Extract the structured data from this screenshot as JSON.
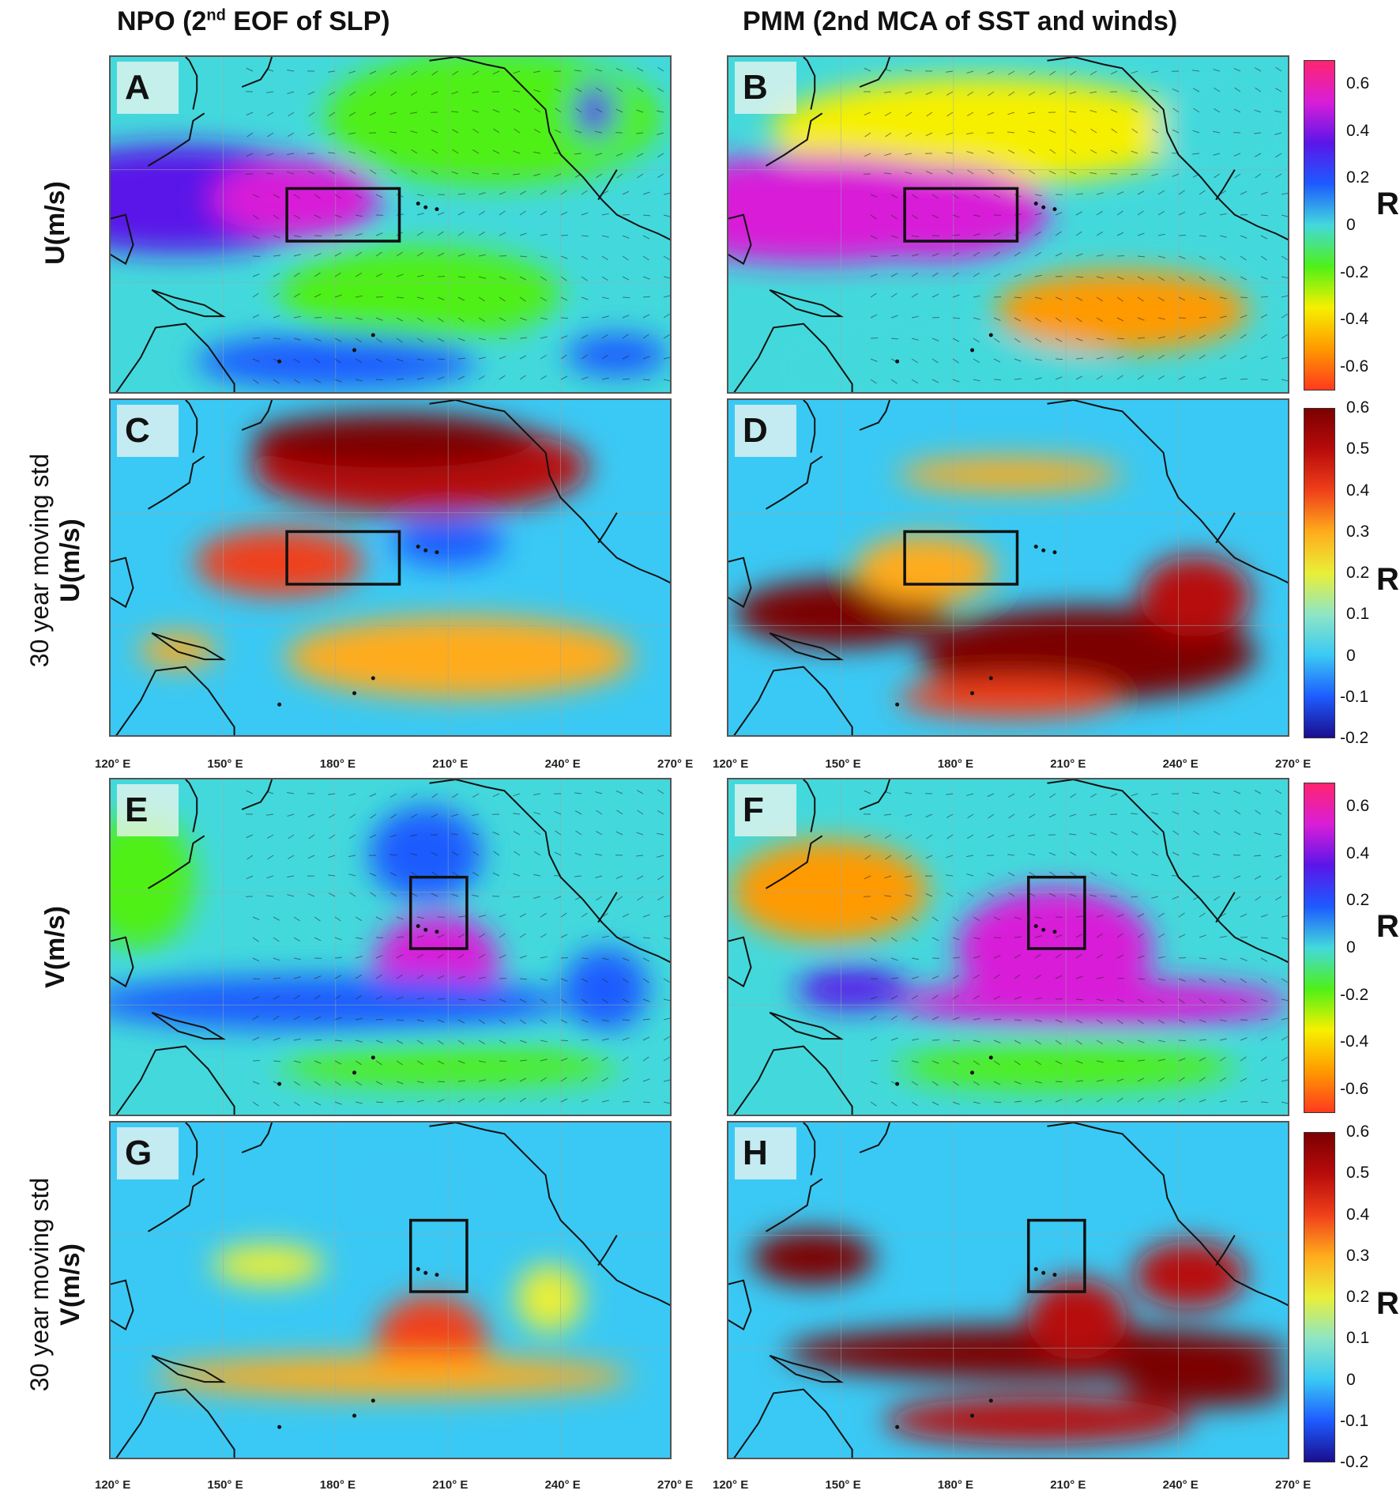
{
  "titles": {
    "left": {
      "prefix": "NPO (2",
      "sup": "nd",
      "suffix": " EOF of SLP)"
    },
    "right": {
      "prefix": "PMM (2nd MCA of SST and winds)"
    }
  },
  "row_labels": [
    {
      "sub": "",
      "main": "U(m/s)"
    },
    {
      "sub": "30 year moving std",
      "main": "U(m/s)"
    },
    {
      "sub": "",
      "main": "V(m/s)"
    },
    {
      "sub": "30 year moving std",
      "main": "V(m/s)"
    }
  ],
  "panels": [
    {
      "id": "A",
      "label": "A",
      "kind": "corr",
      "box": {
        "lon": [
          167,
          197
        ],
        "lat": [
          11,
          25
        ]
      }
    },
    {
      "id": "B",
      "label": "B",
      "kind": "corr",
      "box": {
        "lon": [
          167,
          197
        ],
        "lat": [
          11,
          25
        ]
      }
    },
    {
      "id": "C",
      "label": "C",
      "kind": "std",
      "box": {
        "lon": [
          167,
          197
        ],
        "lat": [
          11,
          25
        ]
      }
    },
    {
      "id": "D",
      "label": "D",
      "kind": "std",
      "box": {
        "lon": [
          167,
          197
        ],
        "lat": [
          11,
          25
        ]
      }
    },
    {
      "id": "E",
      "label": "E",
      "kind": "corr",
      "box": {
        "lon": [
          200,
          215
        ],
        "lat": [
          15,
          34
        ]
      }
    },
    {
      "id": "F",
      "label": "F",
      "kind": "corr",
      "box": {
        "lon": [
          200,
          215
        ],
        "lat": [
          15,
          34
        ]
      }
    },
    {
      "id": "G",
      "label": "G",
      "kind": "std",
      "box": {
        "lon": [
          200,
          215
        ],
        "lat": [
          15,
          34
        ]
      }
    },
    {
      "id": "H",
      "label": "H",
      "kind": "std",
      "box": {
        "lon": [
          200,
          215
        ],
        "lat": [
          15,
          34
        ]
      }
    }
  ],
  "map_extent": {
    "lon": [
      120,
      270
    ],
    "lat": [
      -30,
      60
    ]
  },
  "lon_ticks": [
    "120° E",
    "150° E",
    "180° E",
    "210° E",
    "240° E",
    "270° E"
  ],
  "colorbars": {
    "corr": {
      "ticks": [
        "0.6",
        "0.4",
        "0.2",
        "0",
        "-0.2",
        "-0.4",
        "-0.6"
      ],
      "range": [
        -0.7,
        0.7
      ],
      "colors": [
        "#ff3a1e",
        "#ff9a00",
        "#f6f000",
        "#4ff018",
        "#43d9dc",
        "#1d5bff",
        "#5a16e8",
        "#d81ed8",
        "#ff2470"
      ]
    },
    "std": {
      "ticks": [
        "0.6",
        "0.5",
        "0.4",
        "0.3",
        "0.2",
        "0.1",
        "0",
        "-0.1",
        "-0.2"
      ],
      "range": [
        -0.2,
        0.6
      ],
      "colors": [
        "#1a0e8e",
        "#1e5cff",
        "#3ac9f4",
        "#8fe6c5",
        "#e9ef38",
        "#ffac1c",
        "#f0401a",
        "#b80b0b",
        "#7c0000"
      ]
    },
    "label": "R"
  }
}
